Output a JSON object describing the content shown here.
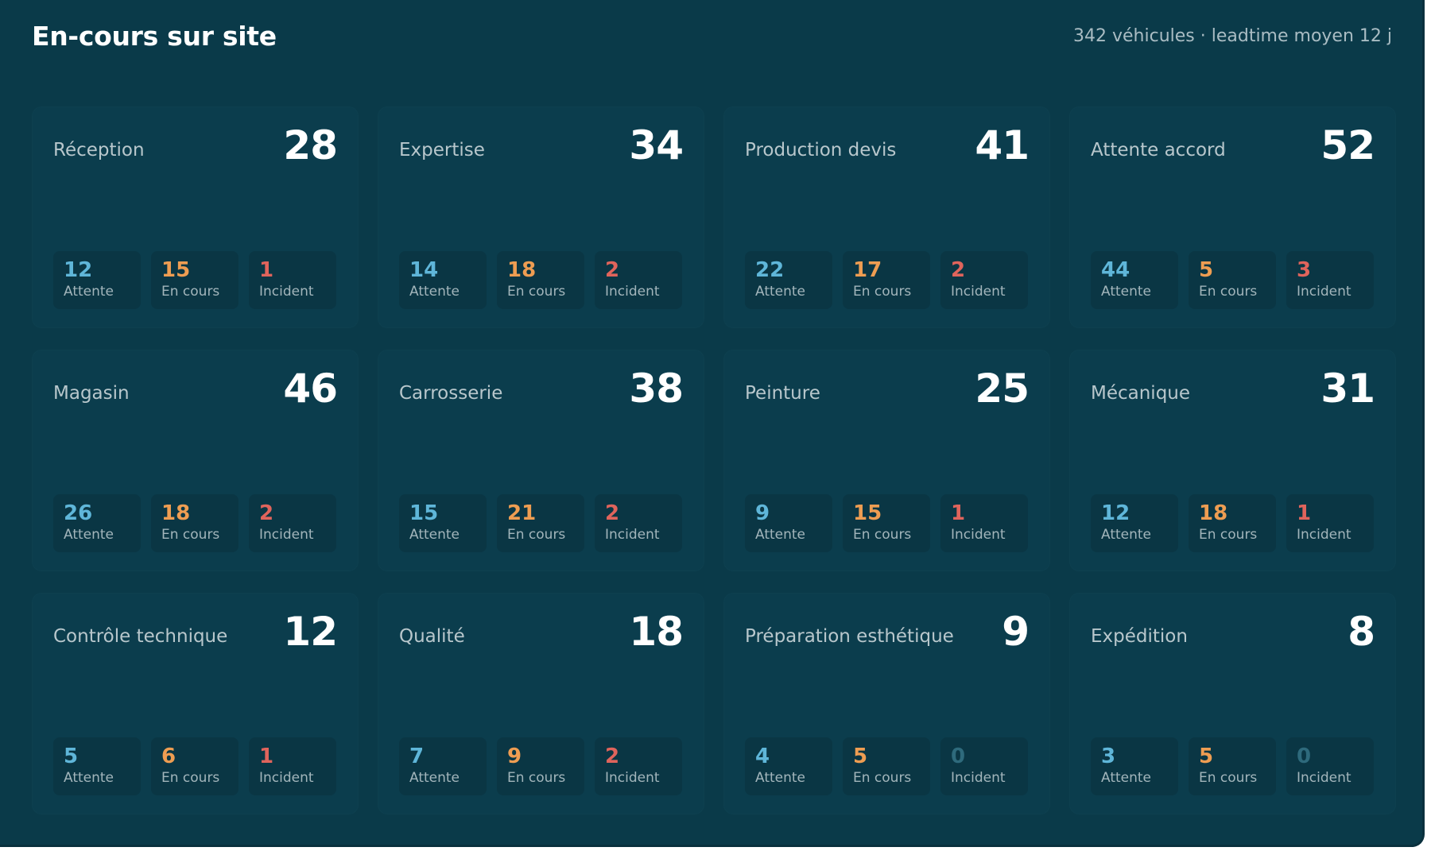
{
  "header": {
    "title": "En-cours sur site",
    "summary": "342 véhicules · leadtime moyen 12 j"
  },
  "labels": {
    "wait": "Attente",
    "progress": "En cours",
    "incident": "Incident"
  },
  "colors": {
    "wait": "#5fb6d9",
    "progress": "#ee9d52",
    "incident": "#e0645c",
    "zero": "#2e6a7c",
    "background": "#0a3a49"
  },
  "cards": [
    {
      "name": "Réception",
      "total": "28",
      "wait": "12",
      "progress": "15",
      "incident": "1"
    },
    {
      "name": "Expertise",
      "total": "34",
      "wait": "14",
      "progress": "18",
      "incident": "2"
    },
    {
      "name": "Production devis",
      "total": "41",
      "wait": "22",
      "progress": "17",
      "incident": "2"
    },
    {
      "name": "Attente accord",
      "total": "52",
      "wait": "44",
      "progress": "5",
      "incident": "3"
    },
    {
      "name": "Magasin",
      "total": "46",
      "wait": "26",
      "progress": "18",
      "incident": "2"
    },
    {
      "name": "Carrosserie",
      "total": "38",
      "wait": "15",
      "progress": "21",
      "incident": "2"
    },
    {
      "name": "Peinture",
      "total": "25",
      "wait": "9",
      "progress": "15",
      "incident": "1"
    },
    {
      "name": "Mécanique",
      "total": "31",
      "wait": "12",
      "progress": "18",
      "incident": "1"
    },
    {
      "name": "Contrôle technique",
      "total": "12",
      "wait": "5",
      "progress": "6",
      "incident": "1"
    },
    {
      "name": "Qualité",
      "total": "18",
      "wait": "7",
      "progress": "9",
      "incident": "2"
    },
    {
      "name": "Préparation esthétique",
      "total": "9",
      "wait": "4",
      "progress": "5",
      "incident": "0"
    },
    {
      "name": "Expédition",
      "total": "8",
      "wait": "3",
      "progress": "5",
      "incident": "0"
    }
  ]
}
